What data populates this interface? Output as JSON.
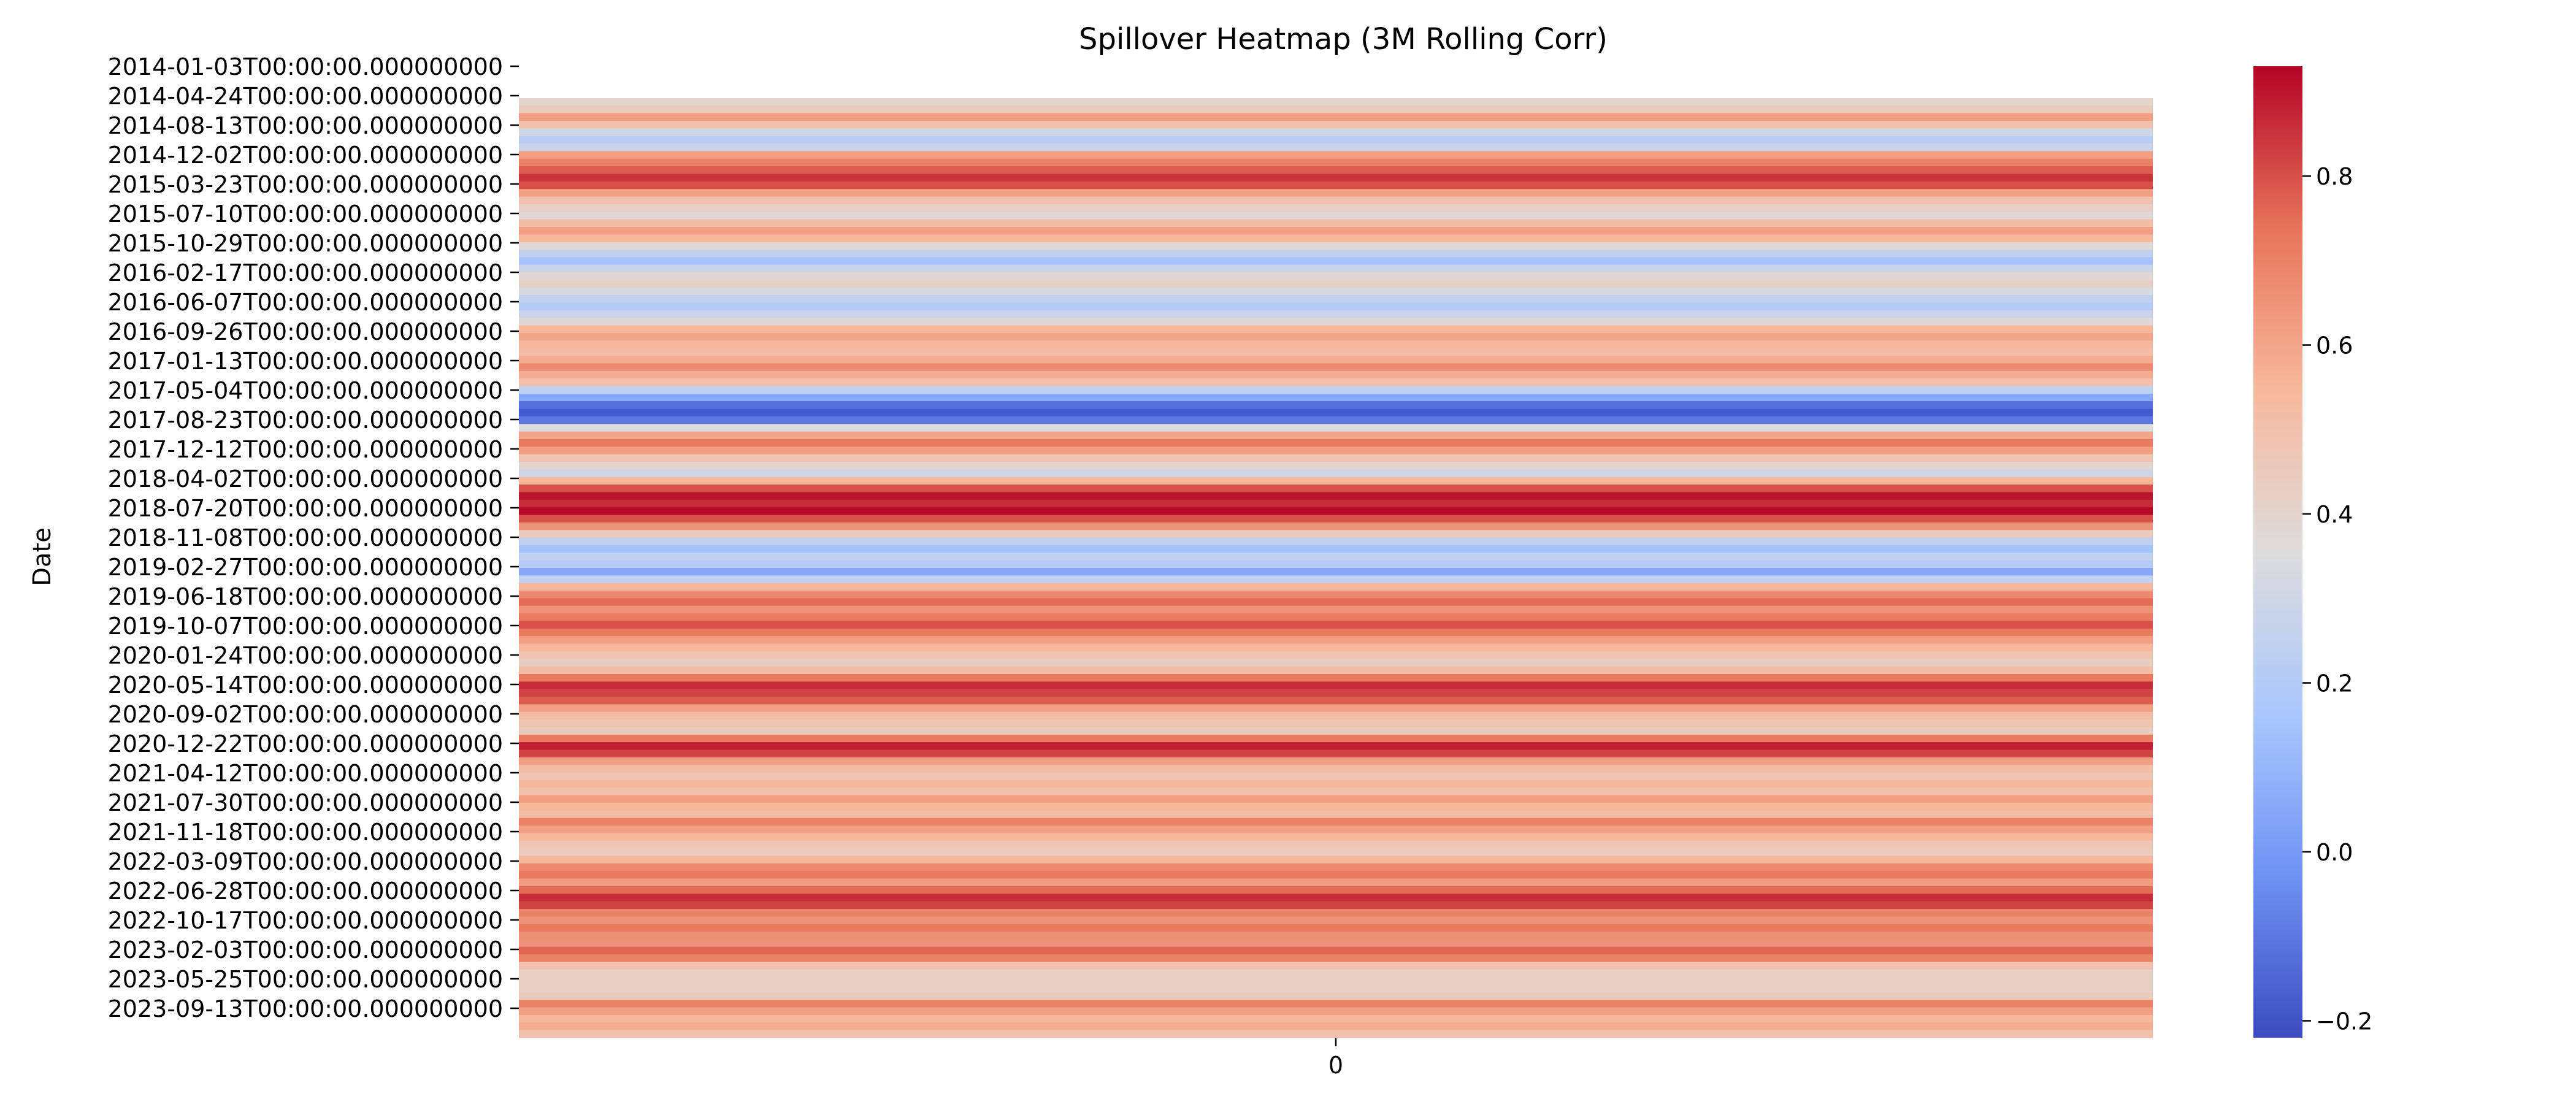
{
  "chart_data": {
    "type": "heatmap",
    "title": "Spillover Heatmap (3M Rolling Corr)",
    "ylabel": "Date",
    "xlabel": "",
    "x_categories": [
      "0"
    ],
    "y_tick_labels": [
      "2014-01-03T00:00:00.000000000",
      "2014-04-24T00:00:00.000000000",
      "2014-08-13T00:00:00.000000000",
      "2014-12-02T00:00:00.000000000",
      "2015-03-23T00:00:00.000000000",
      "2015-07-10T00:00:00.000000000",
      "2015-10-29T00:00:00.000000000",
      "2016-02-17T00:00:00.000000000",
      "2016-06-07T00:00:00.000000000",
      "2016-09-26T00:00:00.000000000",
      "2017-01-13T00:00:00.000000000",
      "2017-05-04T00:00:00.000000000",
      "2017-08-23T00:00:00.000000000",
      "2017-12-12T00:00:00.000000000",
      "2018-04-02T00:00:00.000000000",
      "2018-07-20T00:00:00.000000000",
      "2018-11-08T00:00:00.000000000",
      "2019-02-27T00:00:00.000000000",
      "2019-06-18T00:00:00.000000000",
      "2019-10-07T00:00:00.000000000",
      "2020-01-24T00:00:00.000000000",
      "2020-05-14T00:00:00.000000000",
      "2020-09-02T00:00:00.000000000",
      "2020-12-22T00:00:00.000000000",
      "2021-04-12T00:00:00.000000000",
      "2021-07-30T00:00:00.000000000",
      "2021-11-18T00:00:00.000000000",
      "2022-03-09T00:00:00.000000000",
      "2022-06-28T00:00:00.000000000",
      "2022-10-17T00:00:00.000000000",
      "2023-02-03T00:00:00.000000000",
      "2023-05-25T00:00:00.000000000",
      "2023-09-13T00:00:00.000000000"
    ],
    "values": [
      0.4,
      0.45,
      0.62,
      0.5,
      0.3,
      0.22,
      0.28,
      0.62,
      0.7,
      0.78,
      0.85,
      0.8,
      0.62,
      0.5,
      0.42,
      0.38,
      0.52,
      0.62,
      0.55,
      0.38,
      0.25,
      0.15,
      0.28,
      0.38,
      0.42,
      0.33,
      0.25,
      0.2,
      0.28,
      0.38,
      0.55,
      0.6,
      0.55,
      0.52,
      0.58,
      0.68,
      0.58,
      0.5,
      0.25,
      0.05,
      -0.12,
      -0.18,
      -0.1,
      0.35,
      0.6,
      0.72,
      0.62,
      0.48,
      0.4,
      0.3,
      0.55,
      0.8,
      0.9,
      0.86,
      0.92,
      0.8,
      0.65,
      0.45,
      0.25,
      0.15,
      0.25,
      0.2,
      0.05,
      0.25,
      0.55,
      0.68,
      0.75,
      0.65,
      0.72,
      0.8,
      0.72,
      0.62,
      0.55,
      0.48,
      0.44,
      0.52,
      0.72,
      0.86,
      0.82,
      0.78,
      0.62,
      0.52,
      0.48,
      0.45,
      0.72,
      0.88,
      0.82,
      0.62,
      0.52,
      0.48,
      0.55,
      0.5,
      0.62,
      0.55,
      0.52,
      0.7,
      0.62,
      0.55,
      0.48,
      0.45,
      0.55,
      0.68,
      0.72,
      0.62,
      0.75,
      0.86,
      0.82,
      0.7,
      0.65,
      0.72,
      0.66,
      0.65,
      0.76,
      0.7,
      0.5,
      0.42,
      0.42,
      0.42,
      0.45,
      0.7,
      0.62,
      0.55,
      0.58,
      0.5
    ],
    "colorbar": {
      "min": -0.22,
      "max": 0.93,
      "ticks": [
        -0.2,
        0.0,
        0.2,
        0.4,
        0.6,
        0.8
      ],
      "tick_labels": [
        "−0.2",
        "0.0",
        "0.2",
        "0.4",
        "0.6",
        "0.8"
      ],
      "colormap": "coolwarm",
      "color_stops": [
        "#3b4cc0",
        "#6f92f3",
        "#aac7fd",
        "#dddcdc",
        "#f7b89c",
        "#e7745b",
        "#b40426"
      ]
    },
    "legend": "none",
    "grid": false
  }
}
